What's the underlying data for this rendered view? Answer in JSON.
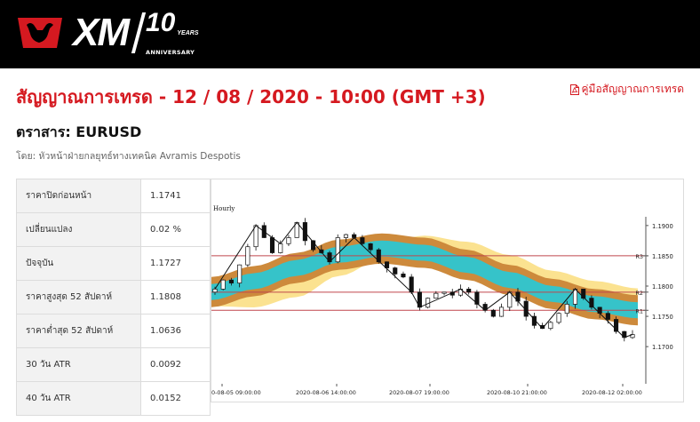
{
  "header": {
    "brand": "XM",
    "anniversary_number": "10",
    "anniversary_years": "YEARS",
    "anniversary_label": "ANNIVERSARY"
  },
  "page": {
    "title": "สัญญาณการเทรด - 12 / 08 / 2020 - 10:00 (GMT +3)",
    "manual_link": "คู่มือสัญญาณการเทรด",
    "instrument": "ตราสาร: EURUSD",
    "byline": "โดย: หัวหน้าฝ่ายกลยุทธ์ทางเทคนิค Avramis Despotis"
  },
  "stats": [
    {
      "label": "ราคาปิดก่อนหน้า",
      "value": "1.1741"
    },
    {
      "label": "เปลี่ยนแปลง",
      "value": "0.02 %"
    },
    {
      "label": "ปัจจุบัน",
      "value": "1.1727"
    },
    {
      "label": "ราคาสูงสุด 52 สัปดาห์",
      "value": "1.1808"
    },
    {
      "label": "ราคาต่ำสุด 52 สัปดาห์",
      "value": "1.0636"
    },
    {
      "label": "30 วัน ATR",
      "value": "0.0092"
    },
    {
      "label": "40 วัน ATR",
      "value": "0.0152"
    }
  ],
  "colors": {
    "brand_red": "#d51920",
    "band_cyan": "#36c3c9",
    "band_orange": "#cd8a3c",
    "band_yellow": "#fbe08a",
    "level_line": "#c0474d"
  },
  "chart_data": {
    "type": "candlestick",
    "timeframe": "Hourly",
    "ylim": [
      1.1665,
      1.1935
    ],
    "y_ticks": [
      "1.1900",
      "1.1850",
      "1.1800",
      "1.1750",
      "1.1700"
    ],
    "x_ticks": [
      "0-08-05 09:00:00",
      "2020-08-06 14:00:00",
      "2020-08-07 19:00:00",
      "2020-08-10 21:00:00",
      "2020-08-12 02:00:00"
    ],
    "levels": [
      {
        "name": "R3",
        "value": 1.185
      },
      {
        "name": "R2",
        "value": 1.179
      },
      {
        "name": "R1",
        "value": 1.176
      }
    ],
    "price_path": [
      1.1795,
      1.181,
      1.1805,
      1.1835,
      1.1865,
      1.19,
      1.188,
      1.1855,
      1.187,
      1.188,
      1.1905,
      1.1875,
      1.186,
      1.1855,
      1.184,
      1.188,
      1.1885,
      1.188,
      1.187,
      1.186,
      1.184,
      1.183,
      1.182,
      1.1815,
      1.179,
      1.1765,
      1.178,
      1.1788,
      1.179,
      1.1785,
      1.1795,
      1.179,
      1.177,
      1.176,
      1.175,
      1.1765,
      1.179,
      1.1775,
      1.175,
      1.1735,
      1.173,
      1.174,
      1.1755,
      1.177,
      1.1795,
      1.178,
      1.1765,
      1.1755,
      1.1745,
      1.1725,
      1.1715,
      1.172
    ]
  }
}
